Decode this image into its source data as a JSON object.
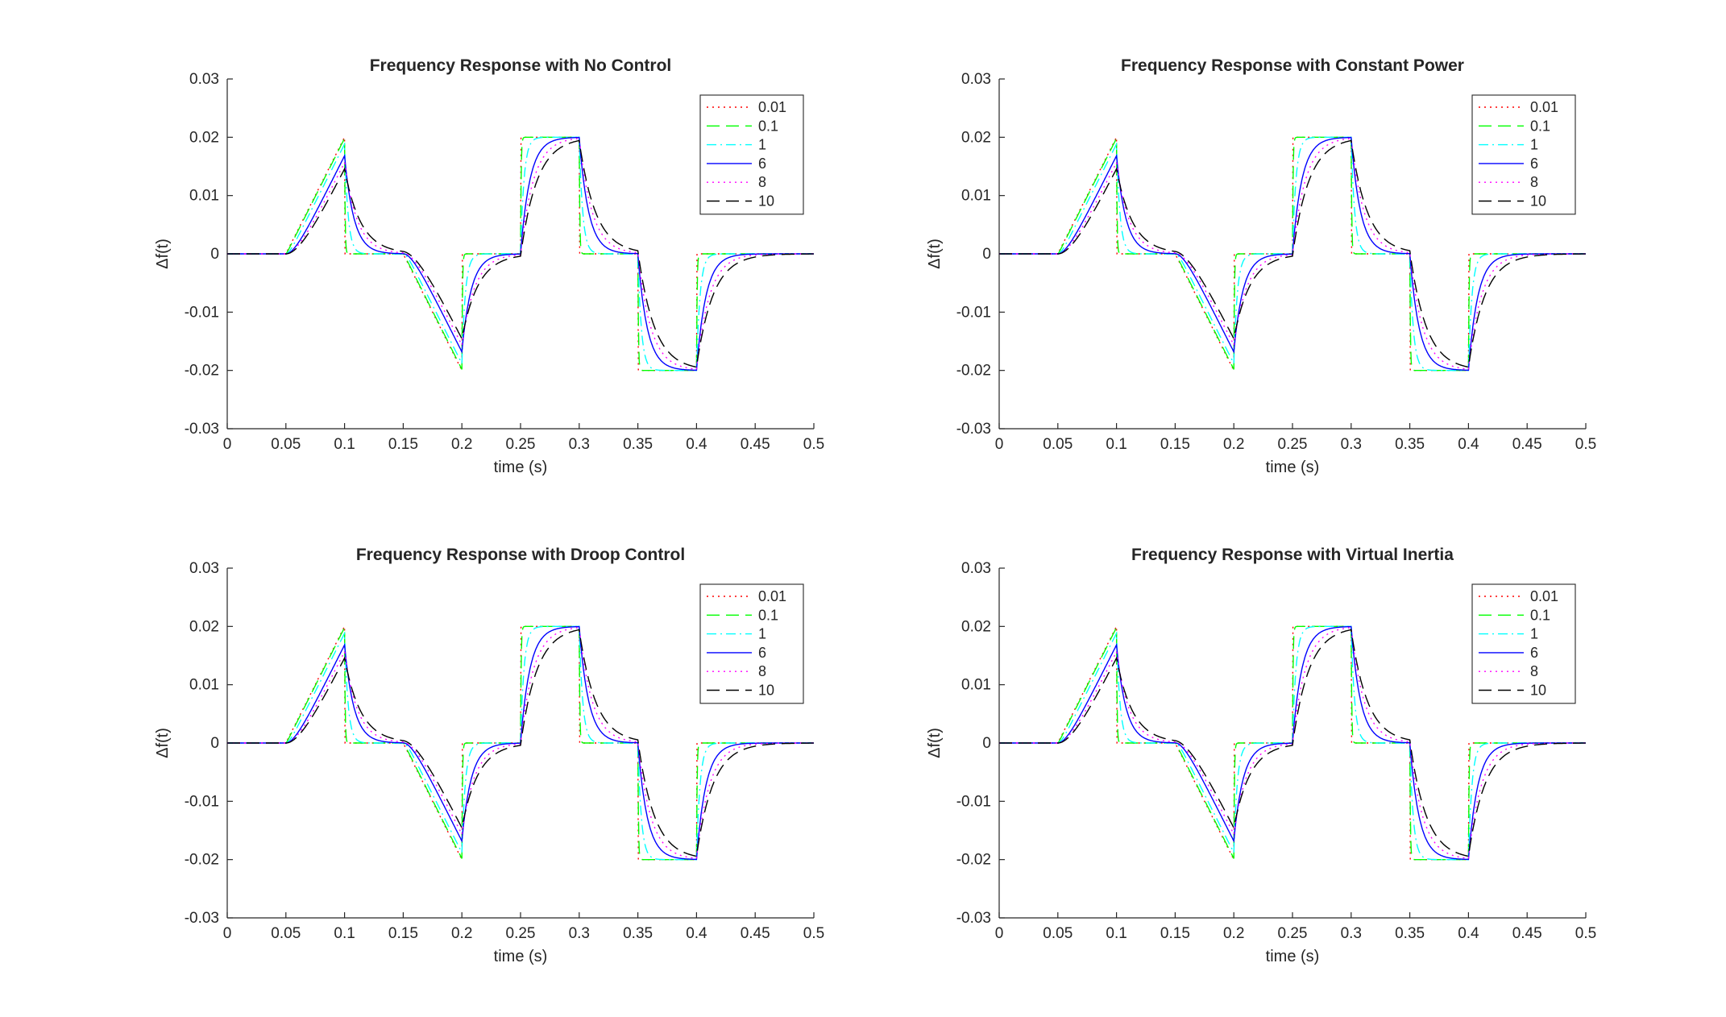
{
  "chart_data": [
    {
      "type": "line",
      "title": "Frequency Response with No Control",
      "xlabel": "time (s)",
      "ylabel": "Δf(t)",
      "xlim": [
        0,
        0.5
      ],
      "ylim": [
        -0.03,
        0.03
      ],
      "xticks": [
        0,
        0.05,
        0.1,
        0.15,
        0.2,
        0.25,
        0.3,
        0.35,
        0.4,
        0.45,
        0.5
      ],
      "xtick_labels": [
        "0",
        "0.05",
        "0.1",
        "0.15",
        "0.2",
        "0.25",
        "0.3",
        "0.35",
        "0.4",
        "0.45",
        "0.5"
      ],
      "yticks": [
        -0.03,
        -0.02,
        -0.01,
        0,
        0.01,
        0.02,
        0.03
      ],
      "ytick_labels": [
        "-0.03",
        "-0.02",
        "-0.01",
        "0",
        "0.01",
        "0.02",
        "0.03"
      ],
      "grid": false,
      "legend_position": "top-right",
      "series": [
        {
          "name": "0.01",
          "color": "#ff0000",
          "dash": "dotted",
          "tau": 5e-05
        },
        {
          "name": "0.1",
          "color": "#00ff00",
          "dash": "dashed",
          "tau": 0.0005
        },
        {
          "name": "1",
          "color": "#00ffff",
          "dash": "dashdot",
          "tau": 0.003
        },
        {
          "name": "6",
          "color": "#0000ff",
          "dash": "solid",
          "tau": 0.008
        },
        {
          "name": "8",
          "color": "#ff00ff",
          "dash": "dotted",
          "tau": 0.011
        },
        {
          "name": "10",
          "color": "#000000",
          "dash": "dashed",
          "tau": 0.014
        }
      ]
    },
    {
      "type": "line",
      "title": "Frequency Response with Constant Power",
      "xlabel": "time (s)",
      "ylabel": "Δf(t)",
      "xlim": [
        0,
        0.5
      ],
      "ylim": [
        -0.03,
        0.03
      ],
      "xticks": [
        0,
        0.05,
        0.1,
        0.15,
        0.2,
        0.25,
        0.3,
        0.35,
        0.4,
        0.45,
        0.5
      ],
      "xtick_labels": [
        "0",
        "0.05",
        "0.1",
        "0.15",
        "0.2",
        "0.25",
        "0.3",
        "0.35",
        "0.4",
        "0.45",
        "0.5"
      ],
      "yticks": [
        -0.03,
        -0.02,
        -0.01,
        0,
        0.01,
        0.02,
        0.03
      ],
      "ytick_labels": [
        "-0.03",
        "-0.02",
        "-0.01",
        "0",
        "0.01",
        "0.02",
        "0.03"
      ],
      "grid": false,
      "legend_position": "top-right",
      "series": [
        {
          "name": "0.01",
          "color": "#ff0000",
          "dash": "dotted",
          "tau": 5e-05
        },
        {
          "name": "0.1",
          "color": "#00ff00",
          "dash": "dashed",
          "tau": 0.0005
        },
        {
          "name": "1",
          "color": "#00ffff",
          "dash": "dashdot",
          "tau": 0.003
        },
        {
          "name": "6",
          "color": "#0000ff",
          "dash": "solid",
          "tau": 0.008
        },
        {
          "name": "8",
          "color": "#ff00ff",
          "dash": "dotted",
          "tau": 0.011
        },
        {
          "name": "10",
          "color": "#000000",
          "dash": "dashed",
          "tau": 0.014
        }
      ]
    },
    {
      "type": "line",
      "title": "Frequency Response with Droop Control",
      "xlabel": "time (s)",
      "ylabel": "Δf(t)",
      "xlim": [
        0,
        0.5
      ],
      "ylim": [
        -0.03,
        0.03
      ],
      "xticks": [
        0,
        0.05,
        0.1,
        0.15,
        0.2,
        0.25,
        0.3,
        0.35,
        0.4,
        0.45,
        0.5
      ],
      "xtick_labels": [
        "0",
        "0.05",
        "0.1",
        "0.15",
        "0.2",
        "0.25",
        "0.3",
        "0.35",
        "0.4",
        "0.45",
        "0.5"
      ],
      "yticks": [
        -0.03,
        -0.02,
        -0.01,
        0,
        0.01,
        0.02,
        0.03
      ],
      "ytick_labels": [
        "-0.03",
        "-0.02",
        "-0.01",
        "0",
        "0.01",
        "0.02",
        "0.03"
      ],
      "grid": false,
      "legend_position": "top-right",
      "series": [
        {
          "name": "0.01",
          "color": "#ff0000",
          "dash": "dotted",
          "tau": 5e-05
        },
        {
          "name": "0.1",
          "color": "#00ff00",
          "dash": "dashed",
          "tau": 0.0005
        },
        {
          "name": "1",
          "color": "#00ffff",
          "dash": "dashdot",
          "tau": 0.003
        },
        {
          "name": "6",
          "color": "#0000ff",
          "dash": "solid",
          "tau": 0.008
        },
        {
          "name": "8",
          "color": "#ff00ff",
          "dash": "dotted",
          "tau": 0.011
        },
        {
          "name": "10",
          "color": "#000000",
          "dash": "dashed",
          "tau": 0.014
        }
      ]
    },
    {
      "type": "line",
      "title": "Frequency Response with Virtual Inertia",
      "xlabel": "time (s)",
      "ylabel": "Δf(t)",
      "xlim": [
        0,
        0.5
      ],
      "ylim": [
        -0.03,
        0.03
      ],
      "xticks": [
        0,
        0.05,
        0.1,
        0.15,
        0.2,
        0.25,
        0.3,
        0.35,
        0.4,
        0.45,
        0.5
      ],
      "xtick_labels": [
        "0",
        "0.05",
        "0.1",
        "0.15",
        "0.2",
        "0.25",
        "0.3",
        "0.35",
        "0.4",
        "0.45",
        "0.5"
      ],
      "yticks": [
        -0.03,
        -0.02,
        -0.01,
        0,
        0.01,
        0.02,
        0.03
      ],
      "ytick_labels": [
        "-0.03",
        "-0.02",
        "-0.01",
        "0",
        "0.01",
        "0.02",
        "0.03"
      ],
      "grid": false,
      "legend_position": "top-right",
      "series": [
        {
          "name": "0.01",
          "color": "#ff0000",
          "dash": "dotted",
          "tau": 5e-05
        },
        {
          "name": "0.1",
          "color": "#00ff00",
          "dash": "dashed",
          "tau": 0.0005
        },
        {
          "name": "1",
          "color": "#00ffff",
          "dash": "dashdot",
          "tau": 0.003
        },
        {
          "name": "6",
          "color": "#0000ff",
          "dash": "solid",
          "tau": 0.008
        },
        {
          "name": "8",
          "color": "#ff00ff",
          "dash": "dotted",
          "tau": 0.011
        },
        {
          "name": "10",
          "color": "#000000",
          "dash": "dashed",
          "tau": 0.014
        }
      ],
      "input_signal": {
        "description": "piecewise input: ramp to 0.02 on [0.05,0.1], zero on [0.1,0.15], ramp to -0.02 on [0.15,0.2], zero on [0.2,0.25], +0.02 on [0.25,0.3], zero on [0.3,0.35], -0.02 on [0.35,0.4], zero after"
      }
    }
  ]
}
